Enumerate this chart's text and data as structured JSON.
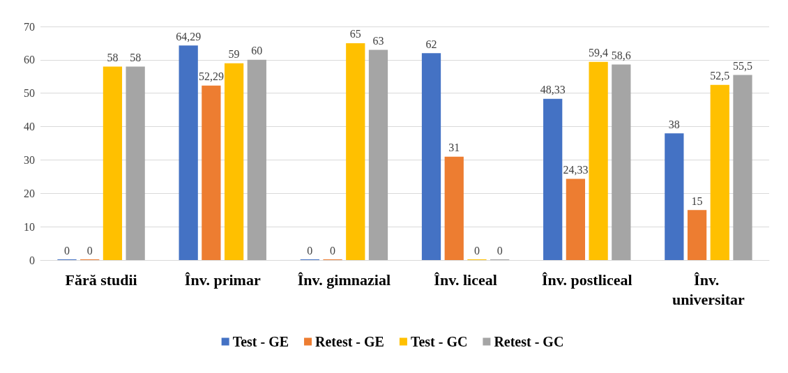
{
  "chart_data": {
    "type": "bar",
    "categories": [
      "Fără studii",
      "Înv. primar",
      "Înv. gimnazial",
      "Înv. liceal",
      "Înv. postliceal",
      "Înv. universitar"
    ],
    "series": [
      {
        "name": "Test - GE",
        "color": "#4472c4",
        "values": [
          0,
          64.29,
          0,
          62,
          48.33,
          38
        ],
        "value_labels": [
          "0",
          "64,29",
          "0",
          "62",
          "48,33",
          "38"
        ]
      },
      {
        "name": "Retest - GE",
        "color": "#ed7d31",
        "values": [
          0,
          52.29,
          0,
          31,
          24.33,
          15
        ],
        "value_labels": [
          "0",
          "52,29",
          "0",
          "31",
          "24,33",
          "15"
        ]
      },
      {
        "name": "Test - GC",
        "color": "#ffc000",
        "values": [
          58,
          59,
          65,
          0,
          59.4,
          52.5
        ],
        "value_labels": [
          "58",
          "59",
          "65",
          "0",
          "59,4",
          "52,5"
        ]
      },
      {
        "name": "Retest - GC",
        "color": "#a5a5a5",
        "values": [
          58,
          60,
          63,
          0,
          58.6,
          55.5
        ],
        "value_labels": [
          "58",
          "60",
          "63",
          "0",
          "58,6",
          "55,5"
        ]
      }
    ],
    "ylim": [
      0,
      70
    ],
    "yticks": [
      0,
      10,
      20,
      30,
      40,
      50,
      60,
      70
    ],
    "grid": "y",
    "legend": "bottom"
  }
}
